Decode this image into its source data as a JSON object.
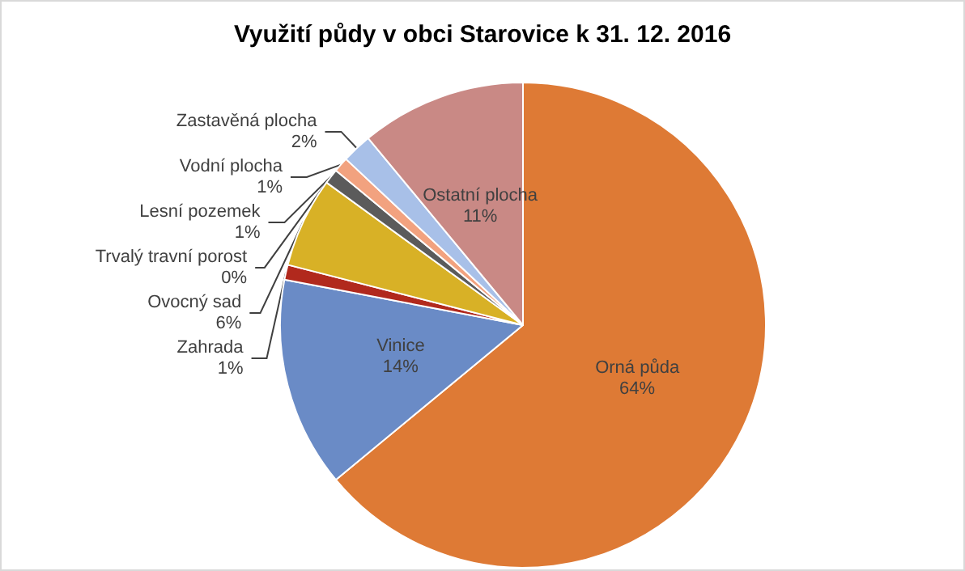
{
  "chart_data": {
    "type": "pie",
    "title": "Využití půdy v obci Starovice k 31. 12. 2016",
    "categories": [
      "Orná půda",
      "Vinice",
      "Zahrada",
      "Ovocný sad",
      "Trvalý travní porost",
      "Lesní pozemek",
      "Vodní plocha",
      "Zastavěná plocha",
      "Ostatní plocha"
    ],
    "values": [
      64,
      14,
      1,
      6,
      0,
      1,
      1,
      2,
      11
    ],
    "value_labels": [
      "64%",
      "14%",
      "1%",
      "6%",
      "0%",
      "1%",
      "1%",
      "2%",
      "11%"
    ],
    "colors": [
      "#de7a35",
      "#6a8bc6",
      "#b1291d",
      "#d8b126",
      "#a6a6a6",
      "#5b5b5b",
      "#f2a27f",
      "#a8c0e8",
      "#c98985"
    ],
    "legend": false
  }
}
